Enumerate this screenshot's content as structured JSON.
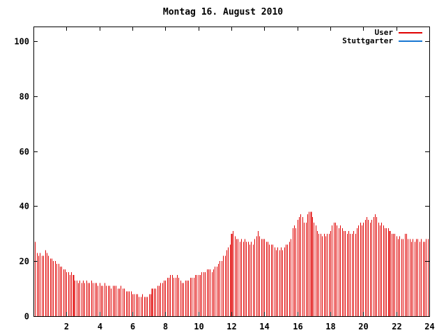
{
  "title": "Montag 16. August 2010",
  "legend": {
    "items": [
      {
        "label": "User",
        "color": "#e00000"
      },
      {
        "label": "Stuttgarter",
        "color": "#1777d2"
      }
    ]
  },
  "colors": {
    "frame": "#000000",
    "background": "#ffffff",
    "user_series": "#e00000",
    "stuttgarter_series": "#1777d2"
  },
  "chart_data": {
    "type": "bar",
    "bar_style": "impulses",
    "title": "Montag 16. August 2010",
    "xlabel": "",
    "ylabel": "",
    "x_unit": "hour of day",
    "interval_minutes": 6,
    "xlim": [
      0,
      24
    ],
    "ylim": [
      0,
      105
    ],
    "x_ticks": [
      2,
      4,
      6,
      8,
      10,
      12,
      14,
      16,
      18,
      20,
      22,
      24
    ],
    "y_ticks": [
      0,
      20,
      40,
      60,
      80,
      100
    ],
    "grid": false,
    "legend_position": "top-right-inside",
    "series": [
      {
        "name": "User",
        "color": "#e00000",
        "values": [
          25,
          27,
          23,
          22,
          23,
          22,
          22,
          24,
          23,
          22,
          21,
          21,
          20,
          20,
          19,
          19,
          18,
          18,
          17,
          17,
          16,
          16,
          15,
          16,
          15,
          13,
          13,
          12,
          13,
          12,
          13,
          12,
          13,
          12,
          12,
          13,
          12,
          12,
          12,
          11,
          12,
          11,
          11,
          12,
          11,
          11,
          11,
          10,
          11,
          11,
          11,
          10,
          10,
          11,
          10,
          10,
          9,
          9,
          9,
          9,
          8,
          8,
          8,
          8,
          7,
          7,
          8,
          7,
          7,
          7,
          8,
          8,
          10,
          10,
          10,
          11,
          11,
          12,
          12,
          13,
          13,
          14,
          14,
          15,
          15,
          14,
          14,
          15,
          14,
          13,
          12,
          12,
          13,
          13,
          13,
          14,
          14,
          14,
          15,
          15,
          15,
          15,
          16,
          16,
          16,
          17,
          17,
          17,
          16,
          17,
          18,
          18,
          19,
          20,
          20,
          22,
          22,
          24,
          25,
          26,
          30,
          31,
          29,
          28,
          28,
          27,
          28,
          27,
          28,
          27,
          27,
          26,
          27,
          26,
          28,
          29,
          31,
          29,
          28,
          28,
          28,
          27,
          27,
          26,
          26,
          26,
          25,
          24,
          25,
          24,
          25,
          24,
          25,
          26,
          26,
          27,
          28,
          32,
          33,
          32,
          35,
          36,
          37,
          36,
          34,
          34,
          37,
          38,
          38,
          36,
          34,
          33,
          31,
          30,
          30,
          29,
          30,
          29,
          30,
          30,
          31,
          33,
          34,
          34,
          33,
          32,
          33,
          32,
          31,
          31,
          30,
          31,
          30,
          30,
          31,
          30,
          32,
          33,
          34,
          33,
          34,
          35,
          36,
          35,
          34,
          35,
          36,
          37,
          36,
          34,
          33,
          34,
          33,
          32,
          32,
          32,
          31,
          30,
          30,
          30,
          29,
          28,
          29,
          28,
          28,
          30,
          30,
          28,
          28,
          27,
          28,
          27,
          28,
          28,
          27,
          28,
          27,
          27,
          28,
          28
        ]
      },
      {
        "name": "Stuttgarter",
        "color": "#1777d2",
        "values": []
      }
    ]
  }
}
